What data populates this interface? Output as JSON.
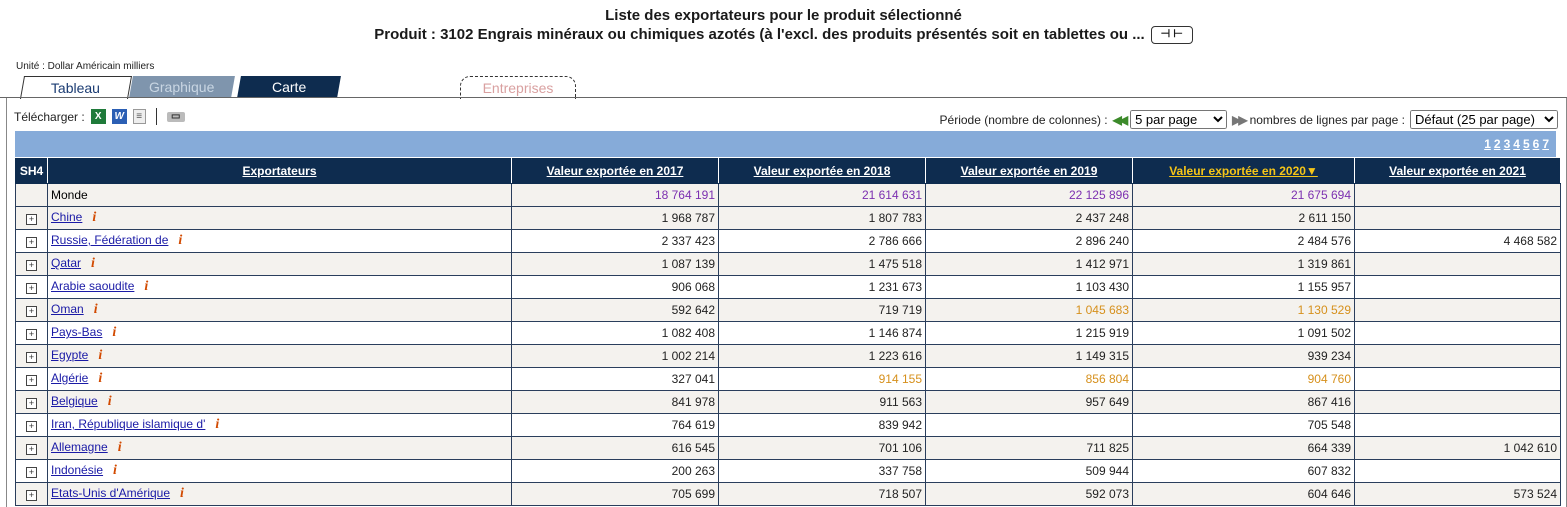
{
  "header": {
    "title_line1": "Liste des exportateurs pour le produit sélectionné",
    "title_line2": "Produit : 3102 Engrais minéraux ou chimiques azotés (à l'excl. des produits présentés soit en tablettes ou ...",
    "expand_glyph": "⊣ ⊢"
  },
  "unit_label": "Unité : Dollar Américain milliers",
  "tabs": [
    {
      "label": "Tableau"
    },
    {
      "label": "Graphique"
    },
    {
      "label": "Carte"
    },
    {
      "label": "Entreprises"
    }
  ],
  "toolbar": {
    "download_label": "Télécharger :",
    "icons": [
      "excel-icon",
      "word-icon",
      "text-file-icon",
      "printer-icon"
    ]
  },
  "controls": {
    "period_label": "Période (nombre de colonnes) :",
    "period_value": "5 par page",
    "rows_label": "nombres de lignes par page :",
    "rows_value": "Défaut (25 par page)"
  },
  "pagination": [
    "1",
    "2",
    "3",
    "4",
    "5",
    "6",
    "7"
  ],
  "table": {
    "headers": [
      "SH4",
      "Exportateurs",
      "Valeur exportée en 2017",
      "Valeur exportée en 2018",
      "Valeur exportée en 2019",
      "Valeur exportée en 2020▼",
      "Valeur exportée en 2021"
    ],
    "world": {
      "name": "Monde",
      "values": [
        "18 764 191",
        "21 614 631",
        "22 125 896",
        "21 675 694",
        ""
      ]
    },
    "rows": [
      {
        "name": "Chine",
        "values": [
          "1 968 787",
          "1 807 783",
          "2 437 248",
          "2 611 150",
          ""
        ]
      },
      {
        "name": "Russie, Fédération de",
        "values": [
          "2 337 423",
          "2 786 666",
          "2 896 240",
          "2 484 576",
          "4 468 582"
        ]
      },
      {
        "name": "Qatar",
        "values": [
          "1 087 139",
          "1 475 518",
          "1 412 971",
          "1 319 861",
          ""
        ]
      },
      {
        "name": "Arabie saoudite",
        "values": [
          "906 068",
          "1 231 673",
          "1 103 430",
          "1 155 957",
          ""
        ]
      },
      {
        "name": "Oman",
        "values": [
          "592 642",
          "719 719",
          "1 045 683",
          "1 130 529",
          ""
        ]
      },
      {
        "name": "Pays-Bas",
        "values": [
          "1 082 408",
          "1 146 874",
          "1 215 919",
          "1 091 502",
          ""
        ]
      },
      {
        "name": "Egypte",
        "values": [
          "1 002 214",
          "1 223 616",
          "1 149 315",
          "939 234",
          ""
        ]
      },
      {
        "name": "Algérie",
        "values": [
          "327 041",
          "914 155",
          "856 804",
          "904 760",
          ""
        ]
      },
      {
        "name": "Belgique",
        "values": [
          "841 978",
          "911 563",
          "957 649",
          "867 416",
          ""
        ]
      },
      {
        "name": "Iran, République islamique d'",
        "values": [
          "764 619",
          "839 942",
          "",
          "705 548",
          ""
        ]
      },
      {
        "name": "Allemagne",
        "values": [
          "616 545",
          "701 106",
          "711 825",
          "664 339",
          "1 042 610"
        ]
      },
      {
        "name": "Indonésie",
        "values": [
          "200 263",
          "337 758",
          "509 944",
          "607 832",
          ""
        ]
      },
      {
        "name": "Etats-Unis d'Amérique",
        "values": [
          "705 699",
          "718 507",
          "592 073",
          "604 646",
          "573 524"
        ]
      }
    ]
  }
}
